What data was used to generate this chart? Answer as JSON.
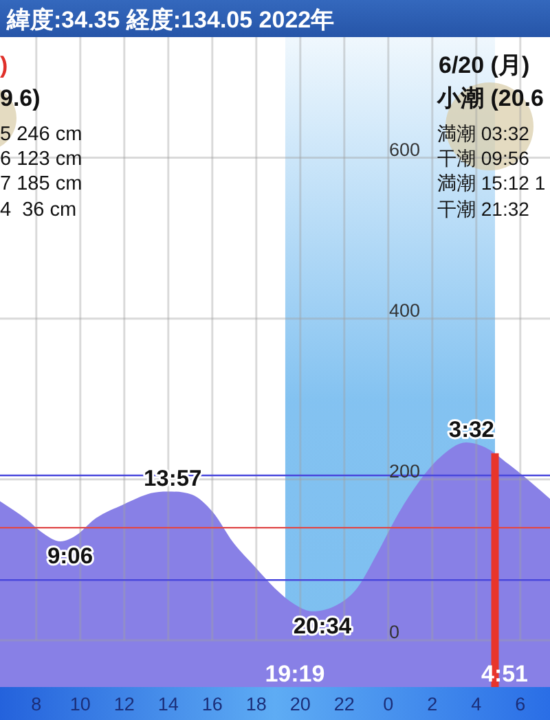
{
  "chart_data": {
    "type": "area",
    "title": "緯度:34.35 経度:134.05 2022年",
    "x": [
      "2022-06-19T06:21",
      "2022-06-19T07:35",
      "2022-06-19T08:13",
      "2022-06-19T09:06",
      "2022-06-19T09:47",
      "2022-06-19T10:43",
      "2022-06-19T11:58",
      "2022-06-19T13:13",
      "2022-06-19T13:57",
      "2022-06-19T15:05",
      "2022-06-19T16:02",
      "2022-06-19T16:58",
      "2022-06-19T17:55",
      "2022-06-19T18:50",
      "2022-06-19T19:47",
      "2022-06-19T20:34",
      "2022-06-19T21:40",
      "2022-06-19T22:35",
      "2022-06-19T23:32",
      "2022-06-20T00:28",
      "2022-06-20T01:25",
      "2022-06-20T02:20",
      "2022-06-20T03:32",
      "2022-06-20T04:32",
      "2022-06-20T05:28",
      "2022-06-20T06:25",
      "2022-06-20T07:21"
    ],
    "series": [
      {
        "color": "#8880e6",
        "values": [
          173,
          150,
          135,
          123,
          130,
          152,
          169,
          183,
          185,
          181,
          159,
          121,
          92,
          65,
          44,
          36,
          44,
          65,
          110,
          158,
          198,
          227,
          246,
          238,
          219,
          198,
          176
        ]
      }
    ],
    "xlim": [
      "2022-06-19T06:21",
      "2022-06-20T07:21"
    ],
    "xticks": [
      {
        "value": "2022-06-19T08:00",
        "label": "8"
      },
      {
        "value": "2022-06-19T10:00",
        "label": "10"
      },
      {
        "value": "2022-06-19T12:00",
        "label": "12"
      },
      {
        "value": "2022-06-19T14:00",
        "label": "14"
      },
      {
        "value": "2022-06-19T16:00",
        "label": "16"
      },
      {
        "value": "2022-06-19T18:00",
        "label": "18"
      },
      {
        "value": "2022-06-19T20:00",
        "label": "20"
      },
      {
        "value": "2022-06-19T22:00",
        "label": "22"
      },
      {
        "value": "2022-06-20T00:00",
        "label": "0"
      },
      {
        "value": "2022-06-20T02:00",
        "label": "2"
      },
      {
        "value": "2022-06-20T04:00",
        "label": "4"
      },
      {
        "value": "2022-06-20T06:00",
        "label": "6"
      }
    ],
    "ylim": [
      0,
      750
    ],
    "yticks": [
      0,
      200,
      400,
      600
    ],
    "grid": true,
    "ref_lines": [
      {
        "axis": "y",
        "value": 205,
        "color": "#4a48dc"
      },
      {
        "axis": "y",
        "value": 140,
        "color": "#e04848"
      },
      {
        "axis": "y",
        "value": 75,
        "color": "#4a48dc"
      },
      {
        "axis": "x",
        "value": "2022-06-20T04:51",
        "label": "4:51",
        "color": "#e8352b"
      }
    ],
    "bands": [
      {
        "axis": "x",
        "from": "2022-06-19T19:19",
        "to": "2022-06-20T04:51",
        "label": "19:19",
        "color": "#7dbff0"
      }
    ],
    "annotations": [
      ")",
      "9.6)",
      "5 246 cm",
      "6 123 cm",
      "7 185 cm",
      "4  36 cm",
      "6/20 (月)",
      "小潮 (20.6",
      "満潮 03:32",
      "干潮 09:56",
      "満潮 15:12 1",
      "干潮 21:32",
      {
        "text": "9:06",
        "x": "2022-06-19T09:06",
        "y": 123
      },
      {
        "text": "13:57",
        "x": "2022-06-19T13:57",
        "y": 185
      },
      {
        "text": "20:34",
        "x": "2022-06-19T20:34",
        "y": 36
      },
      {
        "text": "3:32",
        "x": "2022-06-20T03:32",
        "y": 246
      }
    ]
  }
}
